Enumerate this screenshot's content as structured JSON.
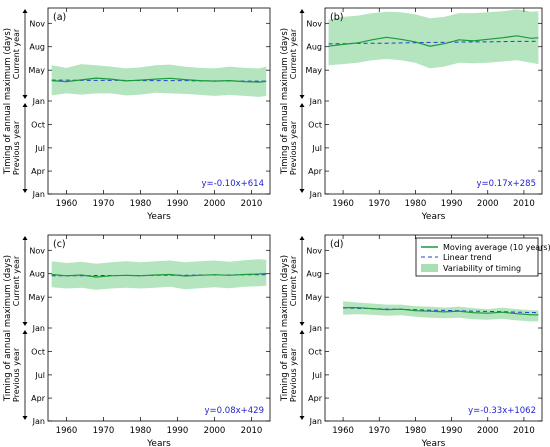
{
  "figure": {
    "ylabel": "Timing of annual maximum (days)",
    "current_year_label": "Current year",
    "previous_year_label": "Previous year",
    "xlabel": "Years"
  },
  "colors": {
    "moving_average": "#1a9a3a",
    "linear_trend": "#1f3fd1",
    "variability": "#a8e0b4",
    "equation": "#1f1fd1"
  },
  "legend": {
    "position": "top-right",
    "panel": "d",
    "entries": [
      {
        "key": "moving_average",
        "label": "Moving average (10 years)"
      },
      {
        "key": "linear_trend",
        "label": "Linear trend"
      },
      {
        "key": "variability",
        "label": "Variability of timing"
      }
    ]
  },
  "chart_data": [
    {
      "type": "line",
      "panel_label": "(a)",
      "xlim": [
        1955,
        2015
      ],
      "x_ticks": [
        1960,
        1970,
        1980,
        1990,
        2000,
        2010
      ],
      "y_tick_labels": [
        "Nov",
        "Aug",
        "May",
        "Jan",
        "Oct",
        "Jul",
        "Apr",
        "Jan"
      ],
      "y_tick_values": [
        305,
        213,
        121,
        0,
        -92,
        -184,
        -275,
        -365
      ],
      "ylim": [
        -365,
        365
      ],
      "equation": "y=-0.10x+614",
      "x": [
        1956,
        1960,
        1964,
        1968,
        1972,
        1976,
        1980,
        1984,
        1988,
        1992,
        1996,
        2000,
        2004,
        2008,
        2012,
        2014
      ],
      "series": [
        {
          "name": "Moving average (10 years)",
          "values": [
            80,
            76,
            83,
            90,
            86,
            79,
            82,
            86,
            89,
            84,
            80,
            78,
            80,
            76,
            74,
            77
          ]
        },
        {
          "name": "Linear trend",
          "values": [
            82,
            82,
            81,
            81,
            81,
            81,
            80,
            80,
            80,
            80,
            79,
            79,
            79,
            78,
            78,
            78
          ]
        }
      ],
      "band": {
        "name": "Variability of timing",
        "upper": [
          140,
          130,
          145,
          140,
          135,
          128,
          132,
          140,
          143,
          135,
          130,
          128,
          135,
          130,
          128,
          135
        ],
        "lower": [
          22,
          30,
          25,
          30,
          30,
          22,
          25,
          32,
          30,
          28,
          24,
          20,
          24,
          20,
          16,
          20
        ]
      }
    },
    {
      "type": "line",
      "panel_label": "(b)",
      "xlim": [
        1955,
        2015
      ],
      "x_ticks": [
        1960,
        1970,
        1980,
        1990,
        2000,
        2010
      ],
      "y_tick_labels": [
        "Nov",
        "Aug",
        "May",
        "Jan",
        "Oct",
        "Jul",
        "Apr",
        "Jan"
      ],
      "y_tick_values": [
        305,
        213,
        121,
        0,
        -92,
        -184,
        -275,
        -365
      ],
      "ylim": [
        -365,
        365
      ],
      "equation": "y=0.17x+285",
      "x": [
        1956,
        1960,
        1964,
        1968,
        1972,
        1976,
        1980,
        1984,
        1988,
        1992,
        1996,
        2000,
        2004,
        2008,
        2012,
        2014
      ],
      "series": [
        {
          "name": "Moving average (10 years)",
          "values": [
            215,
            222,
            228,
            240,
            250,
            242,
            232,
            215,
            225,
            240,
            236,
            242,
            248,
            256,
            246,
            248
          ]
        },
        {
          "name": "Linear trend",
          "values": [
            224,
            225,
            226,
            227,
            227,
            228,
            229,
            230,
            230,
            231,
            232,
            232,
            233,
            234,
            234,
            235
          ]
        }
      ],
      "band": {
        "name": "Variability of timing",
        "upper": [
          320,
          330,
          335,
          345,
          350,
          348,
          340,
          325,
          330,
          345,
          345,
          348,
          352,
          360,
          350,
          352
        ],
        "lower": [
          140,
          145,
          150,
          160,
          165,
          160,
          150,
          128,
          135,
          150,
          148,
          150,
          155,
          160,
          150,
          145
        ]
      }
    },
    {
      "type": "line",
      "panel_label": "(c)",
      "xlim": [
        1955,
        2015
      ],
      "x_ticks": [
        1960,
        1970,
        1980,
        1990,
        2000,
        2010
      ],
      "y_tick_labels": [
        "Nov",
        "Aug",
        "May",
        "Jan",
        "Oct",
        "Jul",
        "Apr",
        "Jan"
      ],
      "y_tick_values": [
        305,
        213,
        121,
        0,
        -92,
        -184,
        -275,
        -365
      ],
      "ylim": [
        -365,
        365
      ],
      "equation": "y=0.08x+429",
      "x": [
        1956,
        1960,
        1964,
        1968,
        1972,
        1976,
        1980,
        1984,
        1988,
        1992,
        1996,
        2000,
        2004,
        2008,
        2012,
        2014
      ],
      "series": [
        {
          "name": "Moving average (10 years)",
          "values": [
            210,
            205,
            208,
            200,
            205,
            207,
            205,
            208,
            210,
            204,
            207,
            209,
            207,
            210,
            212,
            214
          ]
        },
        {
          "name": "Linear trend",
          "values": [
            205,
            205,
            205,
            206,
            206,
            206,
            206,
            207,
            207,
            207,
            208,
            208,
            208,
            209,
            209,
            209
          ]
        }
      ],
      "band": {
        "name": "Variability of timing",
        "upper": [
          262,
          255,
          260,
          252,
          258,
          262,
          258,
          262,
          265,
          258,
          262,
          265,
          260,
          266,
          270,
          268
        ],
        "lower": [
          160,
          155,
          158,
          150,
          155,
          158,
          155,
          158,
          162,
          152,
          156,
          160,
          156,
          162,
          164,
          166
        ]
      }
    },
    {
      "type": "line",
      "panel_label": "(d)",
      "xlim": [
        1955,
        2015
      ],
      "x_ticks": [
        1960,
        1970,
        1980,
        1990,
        2000,
        2010
      ],
      "y_tick_labels": [
        "Nov",
        "Aug",
        "May",
        "Jan",
        "Oct",
        "Jul",
        "Apr",
        "Jan"
      ],
      "y_tick_values": [
        305,
        213,
        121,
        0,
        -92,
        -184,
        -275,
        -365
      ],
      "ylim": [
        -365,
        365
      ],
      "equation": "y=-0.33x+1062",
      "x": [
        1960,
        1964,
        1968,
        1972,
        1976,
        1980,
        1984,
        1988,
        1992,
        1996,
        2000,
        2004,
        2008,
        2012,
        2014
      ],
      "series": [
        {
          "name": "Moving average (10 years)",
          "values": [
            80,
            80,
            76,
            72,
            74,
            68,
            66,
            63,
            66,
            60,
            58,
            62,
            56,
            52,
            52
          ]
        },
        {
          "name": "Linear trend",
          "values": [
            79,
            77,
            76,
            74,
            73,
            72,
            70,
            69,
            68,
            66,
            65,
            64,
            62,
            61,
            60
          ]
        }
      ],
      "band": {
        "name": "Variability of timing",
        "upper": [
          105,
          100,
          96,
          92,
          92,
          86,
          84,
          80,
          84,
          78,
          74,
          80,
          74,
          70,
          70
        ],
        "lower": [
          52,
          54,
          52,
          48,
          50,
          44,
          40,
          38,
          40,
          34,
          32,
          36,
          30,
          26,
          26
        ]
      }
    }
  ]
}
